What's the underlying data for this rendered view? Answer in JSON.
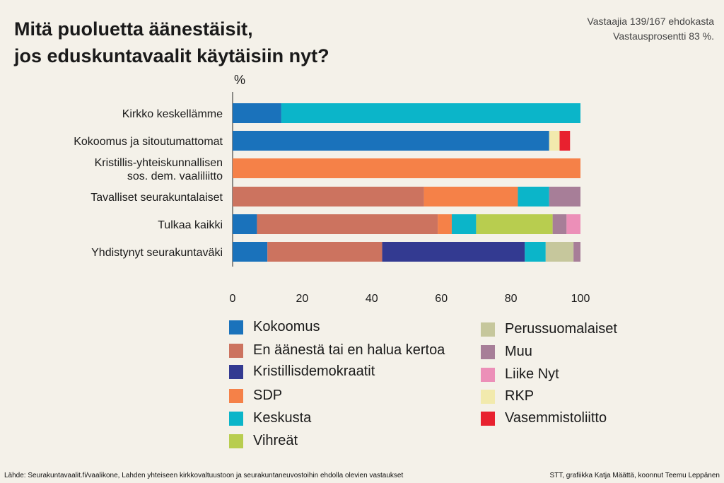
{
  "title_line1": "Mitä puoluetta äänestäisit,",
  "title_line2": "jos eduskuntavaalit käytäisiin nyt?",
  "meta_line1": "Vastaajia 139/167 ehdokasta",
  "meta_line2": "Vastausprosentti 83 %.",
  "footer_left": "Lähde: Seurakuntavaalit.fi/vaalikone, Lahden yhteiseen kirkkovaltuustoon ja seurakuntaneuvostoihin ehdolla olevien vastaukset",
  "footer_right": "STT, grafiikka Katja Määttä, koonnut Teemu Leppänen",
  "chart_data": {
    "type": "bar",
    "orientation": "horizontal",
    "stacked": true,
    "ylabel": "%",
    "xlim": [
      0,
      100
    ],
    "xticks": [
      "0",
      "20",
      "40",
      "60",
      "80",
      "100"
    ],
    "categories": [
      [
        "Kirkko keskellämme"
      ],
      [
        "Kokoomus ja sitoutumattomat"
      ],
      [
        "Kristillis-yhteiskunnallisen",
        "sos. dem. vaaliliitto"
      ],
      [
        "Tavalliset seurakuntalaiset"
      ],
      [
        "Tulkaa kaikki"
      ],
      [
        "Yhdistynyt seurakuntaväki"
      ]
    ],
    "series": [
      {
        "name": "Kokoomus",
        "color": "#1a72bb",
        "values": [
          14,
          91,
          0,
          0,
          7,
          10
        ]
      },
      {
        "name": "En äänestä tai en halua kertoa",
        "color": "#cc735f",
        "values": [
          0,
          0,
          0,
          55,
          52,
          33
        ]
      },
      {
        "name": "Kristillisdemokraatit",
        "color": "#333a91",
        "values": [
          0,
          0,
          0,
          0,
          0,
          41
        ]
      },
      {
        "name": "SDP",
        "color": "#f58148",
        "values": [
          0,
          0,
          100,
          27,
          4,
          0
        ]
      },
      {
        "name": "Keskusta",
        "color": "#0bb5c9",
        "values": [
          86,
          0,
          0,
          9,
          7,
          6
        ]
      },
      {
        "name": "Vihreät",
        "color": "#b8cd4f",
        "values": [
          0,
          0,
          0,
          0,
          22,
          0
        ]
      },
      {
        "name": "Perussuomalaiset",
        "color": "#c6c79c",
        "values": [
          0,
          0,
          0,
          0,
          0,
          8
        ]
      },
      {
        "name": "Muu",
        "color": "#a77e98",
        "values": [
          0,
          0,
          0,
          9,
          4,
          2
        ]
      },
      {
        "name": "Liike Nyt",
        "color": "#ec8fb8",
        "values": [
          0,
          0,
          0,
          0,
          4,
          0
        ]
      },
      {
        "name": "RKP",
        "color": "#f2eaad",
        "values": [
          0,
          3,
          0,
          0,
          0,
          0
        ]
      },
      {
        "name": "Vasemmistoliitto",
        "color": "#e8212f",
        "values": [
          0,
          3,
          0,
          0,
          0,
          0
        ]
      }
    ]
  }
}
